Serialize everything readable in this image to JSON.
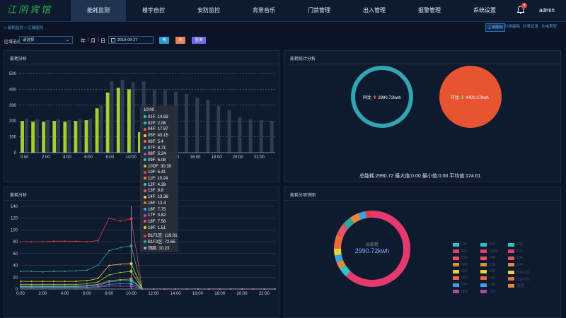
{
  "logo": {
    "text": "江阴宾馆"
  },
  "nav": [
    {
      "label": "能耗监测",
      "active": true
    },
    {
      "label": "楼宇自控",
      "active": false
    },
    {
      "label": "安防监控",
      "active": false
    },
    {
      "label": "背景音乐",
      "active": false
    },
    {
      "label": "门禁管理",
      "active": false
    },
    {
      "label": "出入管理",
      "active": false
    },
    {
      "label": "报警管理",
      "active": false
    },
    {
      "label": "系统设置",
      "active": false
    }
  ],
  "header": {
    "badge": "8",
    "user": "admin"
  },
  "breadcrumb": "> 能耗监测 > 区域能耗",
  "subtabs": [
    {
      "label": "区域能耗",
      "active": true
    },
    {
      "label": "分类能耗",
      "active": false
    },
    {
      "label": "抄表记录",
      "active": false
    },
    {
      "label": "水电表型",
      "active": false
    }
  ],
  "filter": {
    "region_label": "区域选择",
    "region_placeholder": "请选择",
    "seg_year": "年",
    "seg_month": "月",
    "seg_day": "日",
    "date": "2019-09-27",
    "btn_electric": "电",
    "btn_water": "水",
    "btn_query": "查询"
  },
  "colors": {
    "bar_green": "#a6cf35",
    "bar_gray": "#303d50",
    "accent_blue": "#2c9bd6",
    "btn_electric": "#2c9bd6",
    "btn_water": "#e2845a",
    "btn_query": "#6f6ae3",
    "ring_teal": "#2fa6b0",
    "ring_red": "#e65432"
  },
  "panel_titles": {
    "bar": "能耗分析",
    "stat": "能耗统计分析",
    "line": "能耗分析",
    "donut": "能耗分项饼图"
  },
  "stat": {
    "yoy_label": "同比",
    "yoy_value": "2990.72kwh",
    "mom_label": "环比",
    "mom_value": "4400.37kwh",
    "summary": "总能耗:2990.72   最大值:0.00   最小值:0.00   平均值:124.61"
  },
  "donut": {
    "center_label": "总能耗",
    "center_value": "2990.72kwh",
    "legend": [
      {
        "label": "01F",
        "color": "#2ec4c6"
      },
      {
        "label": "02F",
        "color": "#e63a6f"
      },
      {
        "label": "03F",
        "color": "#e6526a"
      },
      {
        "label": "04F",
        "color": "#e58a3a"
      },
      {
        "label": "05F",
        "color": "#e8d23a"
      },
      {
        "label": "06F",
        "color": "#f06a3a"
      },
      {
        "label": "07F",
        "color": "#3aa0e8"
      },
      {
        "label": "08F",
        "color": "#b04aa0"
      },
      {
        "label": "09F",
        "color": "#2ec4c6"
      },
      {
        "label": "10DF",
        "color": "#e63a6f"
      },
      {
        "label": "10F",
        "color": "#e6526a"
      },
      {
        "label": "11F",
        "color": "#e58a3a"
      },
      {
        "label": "12F",
        "color": "#e8d23a"
      },
      {
        "label": "13F",
        "color": "#f06a3a"
      },
      {
        "label": "14F",
        "color": "#3aa0e8"
      },
      {
        "label": "15F",
        "color": "#b04aa0"
      },
      {
        "label": "16F",
        "color": "#2ec4c6"
      },
      {
        "label": "17F",
        "color": "#e63a6f"
      },
      {
        "label": "18F",
        "color": "#e6526a"
      },
      {
        "label": "19F",
        "color": "#e58a3a"
      },
      {
        "label": "B1F1区",
        "color": "#e8d23a"
      },
      {
        "label": "B1F2区",
        "color": "#f06a3a"
      },
      {
        "label": "顶层",
        "color": "#e58a3a"
      }
    ]
  },
  "tooltip": {
    "title": "10:00",
    "rows": [
      {
        "text": "01F: 14.63",
        "color": "#2ec4c6"
      },
      {
        "text": "02F: 2.06",
        "color": "#2ec4c6"
      },
      {
        "text": "04F: 17.87",
        "color": "#e6526a"
      },
      {
        "text": "05F: 43.15",
        "color": "#e8d23a"
      },
      {
        "text": "06F: 5.4",
        "color": "#f06a3a"
      },
      {
        "text": "07F: 8.71",
        "color": "#3aa0e8"
      },
      {
        "text": "08F: 5.24",
        "color": "#b04aa0"
      },
      {
        "text": "09F: 6.08",
        "color": "#2ec4c6"
      },
      {
        "text": "10DF: 30.39",
        "color": "#a6cf35"
      },
      {
        "text": "10F: 5.41",
        "color": "#e63a6f"
      },
      {
        "text": "11F: 10.24",
        "color": "#e58a3a"
      },
      {
        "text": "12F: 4.39",
        "color": "#2ec4c6"
      },
      {
        "text": "13F: 8.8",
        "color": "#e6526a"
      },
      {
        "text": "14F: 13.36",
        "color": "#e8d23a"
      },
      {
        "text": "15F: 12.4",
        "color": "#f06a3a"
      },
      {
        "text": "16F: 7.75",
        "color": "#3aa0e8"
      },
      {
        "text": "17F: 3.82",
        "color": "#b04aa0"
      },
      {
        "text": "18F: 7.56",
        "color": "#e6526a"
      },
      {
        "text": "19F: 1.51",
        "color": "#e8d23a"
      },
      {
        "text": "B1F1区: 119.01",
        "color": "#e63a4a"
      },
      {
        "text": "B1F2区: 72.65",
        "color": "#2ea89a"
      },
      {
        "text": "顶层: 10.23",
        "color": "#7fb0e8"
      }
    ]
  },
  "chart_data": [
    {
      "type": "bar",
      "categories": [
        "0:00",
        "1:00",
        "2:00",
        "3:00",
        "4:00",
        "5:00",
        "6:00",
        "7:00",
        "8:00",
        "9:00",
        "10:00",
        "11:00",
        "12:00",
        "13:00",
        "14:00",
        "15:00",
        "16:00",
        "17:00",
        "18:00",
        "19:00",
        "20:00",
        "21:00",
        "22:00",
        "23:00"
      ],
      "tick_labels": [
        "0:00",
        "2:00",
        "4:00",
        "6:00",
        "8:00",
        "10:00",
        "12:00",
        "14:00",
        "16:00",
        "18:00",
        "20:00",
        "22:00"
      ],
      "series": [
        {
          "values": [
            200,
            195,
            195,
            200,
            195,
            200,
            205,
            280,
            380,
            410,
            400,
            130,
            0,
            0,
            0,
            0,
            0,
            0,
            0,
            0,
            0,
            0,
            0,
            0
          ]
        },
        {
          "values": [
            215,
            210,
            205,
            210,
            205,
            210,
            215,
            300,
            450,
            460,
            445,
            450,
            395,
            395,
            385,
            370,
            345,
            335,
            295,
            270,
            225,
            210,
            205,
            200
          ]
        }
      ],
      "ylim": [
        0,
        500
      ],
      "yticks": [
        0,
        100,
        200,
        300,
        400,
        500
      ]
    },
    {
      "type": "line",
      "x": [
        "0:00",
        "1:00",
        "2:00",
        "3:00",
        "4:00",
        "5:00",
        "6:00",
        "7:00",
        "8:00",
        "9:00",
        "10:00",
        "11:00",
        "12:00",
        "13:00",
        "14:00",
        "15:00",
        "16:00",
        "17:00",
        "18:00",
        "19:00",
        "20:00",
        "21:00",
        "22:00",
        "23:00"
      ],
      "tick_labels": [
        "0:00",
        "2:00",
        "4:00",
        "6:00",
        "8:00",
        "10:00",
        "12:00",
        "14:00",
        "16:00",
        "18:00",
        "20:00",
        "22:00"
      ],
      "series": [
        {
          "color": "#e63a4a",
          "values": [
            80,
            80,
            80,
            81,
            81,
            81,
            80,
            82,
            120,
            115,
            119,
            0,
            0,
            0,
            0,
            0,
            0,
            0,
            0,
            0,
            0,
            0,
            0,
            0
          ]
        },
        {
          "color": "#2ea89a",
          "values": [
            30,
            30,
            29,
            30,
            30,
            31,
            32,
            40,
            65,
            70,
            73,
            0,
            0,
            0,
            0,
            0,
            0,
            0,
            0,
            0,
            0,
            0,
            0,
            0
          ]
        },
        {
          "color": "#e8d23a",
          "values": [
            13,
            13,
            13,
            13,
            13,
            13,
            14,
            18,
            40,
            42,
            43,
            0,
            0,
            0,
            0,
            0,
            0,
            0,
            0,
            0,
            0,
            0,
            0,
            0
          ]
        },
        {
          "color": "#a6cf35",
          "values": [
            8,
            8,
            8,
            8,
            8,
            8,
            9,
            12,
            24,
            28,
            30,
            0,
            0,
            0,
            0,
            0,
            0,
            0,
            0,
            0,
            0,
            0,
            0,
            0
          ]
        },
        {
          "color": "#e58a3a",
          "values": [
            5,
            5,
            5,
            5,
            5,
            5,
            6,
            8,
            14,
            16,
            17,
            0,
            0,
            0,
            0,
            0,
            0,
            0,
            0,
            0,
            0,
            0,
            0,
            0
          ]
        },
        {
          "color": "#2ec4c6",
          "values": [
            4,
            4,
            4,
            4,
            4,
            4,
            5,
            6,
            12,
            14,
            14,
            0,
            0,
            0,
            0,
            0,
            0,
            0,
            0,
            0,
            0,
            0,
            0,
            0
          ]
        },
        {
          "color": "#3aa0e8",
          "values": [
            3,
            3,
            3,
            3,
            3,
            3,
            3,
            4,
            8,
            9,
            9,
            0,
            0,
            0,
            0,
            0,
            0,
            0,
            0,
            0,
            0,
            0,
            0,
            0
          ]
        },
        {
          "color": "#b04aa0",
          "values": [
            2,
            2,
            2,
            2,
            2,
            2,
            2,
            3,
            5,
            5,
            5,
            0,
            0,
            0,
            0,
            0,
            0,
            0,
            0,
            0,
            0,
            0,
            0,
            0
          ]
        }
      ],
      "ylim": [
        0,
        140
      ],
      "yticks": [
        0,
        20,
        40,
        60,
        80,
        100,
        120,
        140
      ]
    }
  ]
}
